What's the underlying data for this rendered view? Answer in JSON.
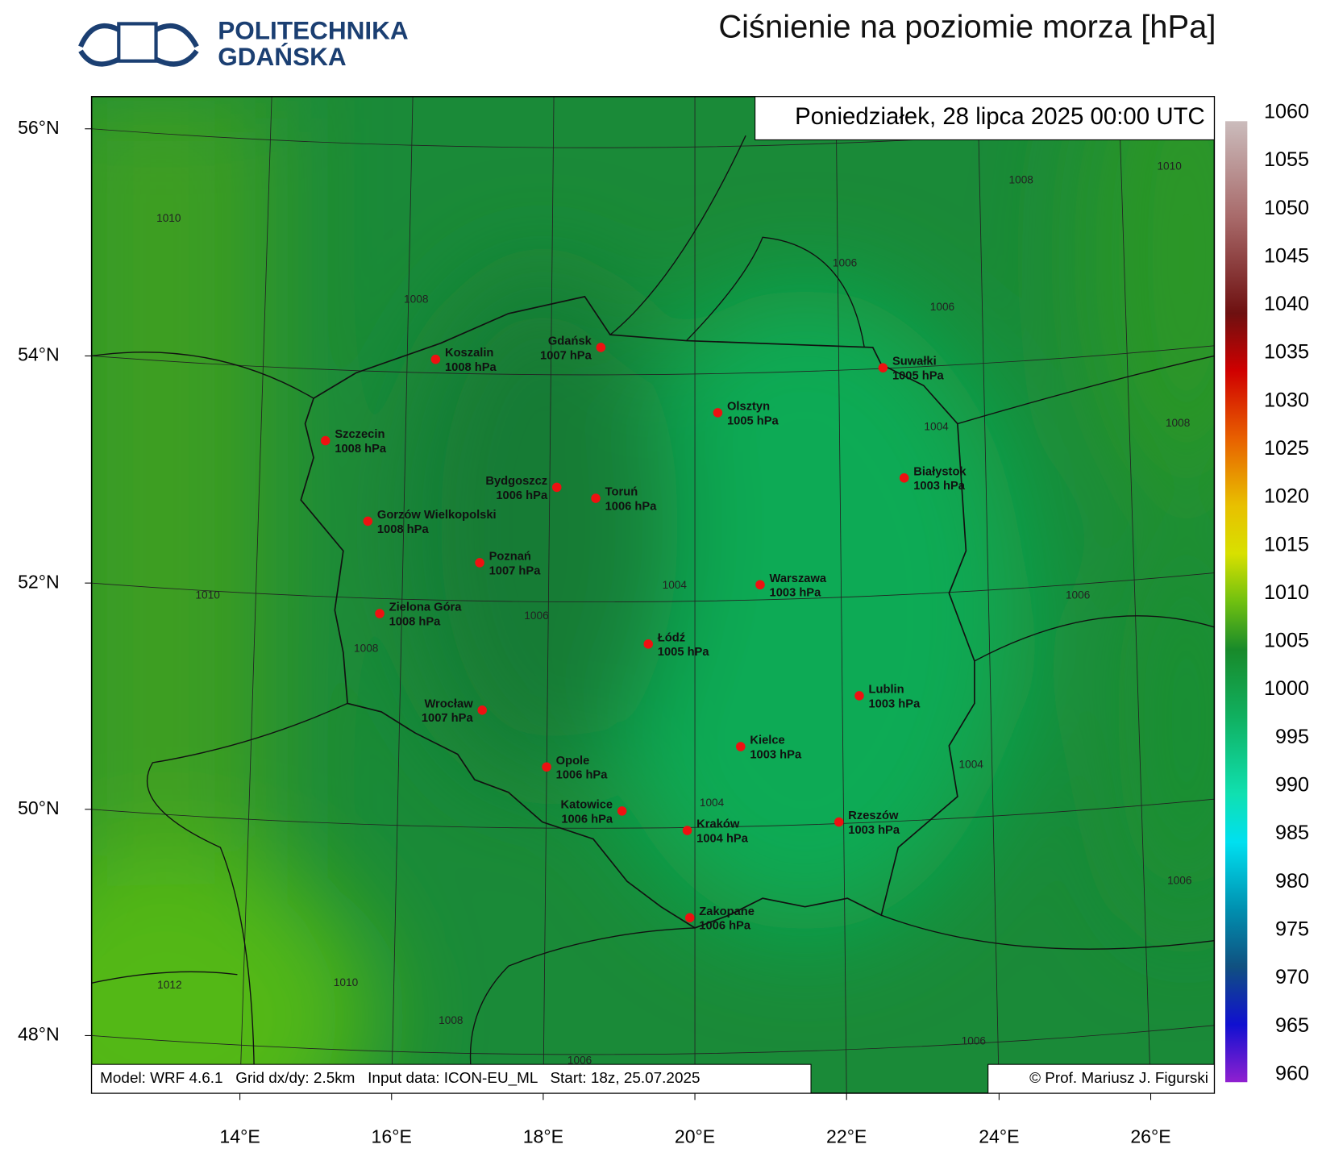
{
  "header": {
    "logo_line1": "POLITECHNIKA",
    "logo_line2": "GDAŃSKA",
    "title": "Ciśnienie na poziomie morza [hPa]"
  },
  "map": {
    "date": "Poniedziałek, 28 lipca 2025 00:00 UTC",
    "model_info": "Model: WRF 4.6.1   Grid dx/dy: 2.5km   Input data: ICON-EU_ML   Start: 18z, 25.07.2025",
    "copyright": "© Prof. Mariusz J. Figurski",
    "lat_labels": [
      "56°N",
      "54°N",
      "52°N",
      "50°N",
      "48°N"
    ],
    "lon_labels": [
      "14°E",
      "16°E",
      "18°E",
      "20°E",
      "22°E",
      "24°E",
      "26°E"
    ],
    "contour_labels": [
      "1010",
      "1010",
      "1010",
      "1010",
      "1008",
      "1008",
      "1008",
      "1008",
      "1008",
      "1006",
      "1006",
      "1006",
      "1006",
      "1006",
      "1006",
      "1006",
      "1004",
      "1004",
      "1004",
      "1004",
      "1012"
    ],
    "cities": [
      {
        "name": "Koszalin",
        "pressure": "1008 hPa"
      },
      {
        "name": "Gdańsk",
        "pressure": "1007 hPa"
      },
      {
        "name": "Szczecin",
        "pressure": "1008 hPa"
      },
      {
        "name": "Gorzów Wielkopolski",
        "pressure": "1008 hPa"
      },
      {
        "name": "Bydgoszcz",
        "pressure": "1006 hPa"
      },
      {
        "name": "Toruń",
        "pressure": "1006 hPa"
      },
      {
        "name": "Poznań",
        "pressure": "1007 hPa"
      },
      {
        "name": "Zielona Góra",
        "pressure": "1008 hPa"
      },
      {
        "name": "Wrocław",
        "pressure": "1007 hPa"
      },
      {
        "name": "Opole",
        "pressure": "1006 hPa"
      },
      {
        "name": "Katowice",
        "pressure": "1006 hPa"
      },
      {
        "name": "Kraków",
        "pressure": "1004 hPa"
      },
      {
        "name": "Zakopane",
        "pressure": "1006 hPa"
      },
      {
        "name": "Łódź",
        "pressure": "1005 hPa"
      },
      {
        "name": "Kielce",
        "pressure": "1003 hPa"
      },
      {
        "name": "Warszawa",
        "pressure": "1003 hPa"
      },
      {
        "name": "Olsztyn",
        "pressure": "1005 hPa"
      },
      {
        "name": "Suwałki",
        "pressure": "1005 hPa"
      },
      {
        "name": "Białystok",
        "pressure": "1003 hPa"
      },
      {
        "name": "Lublin",
        "pressure": "1003 hPa"
      },
      {
        "name": "Rzeszów",
        "pressure": "1003 hPa"
      }
    ]
  },
  "colorbar": {
    "ticks": [
      1060,
      1055,
      1050,
      1045,
      1040,
      1035,
      1030,
      1025,
      1020,
      1015,
      1010,
      1005,
      1000,
      995,
      990,
      985,
      980,
      975,
      970,
      965,
      960
    ]
  }
}
